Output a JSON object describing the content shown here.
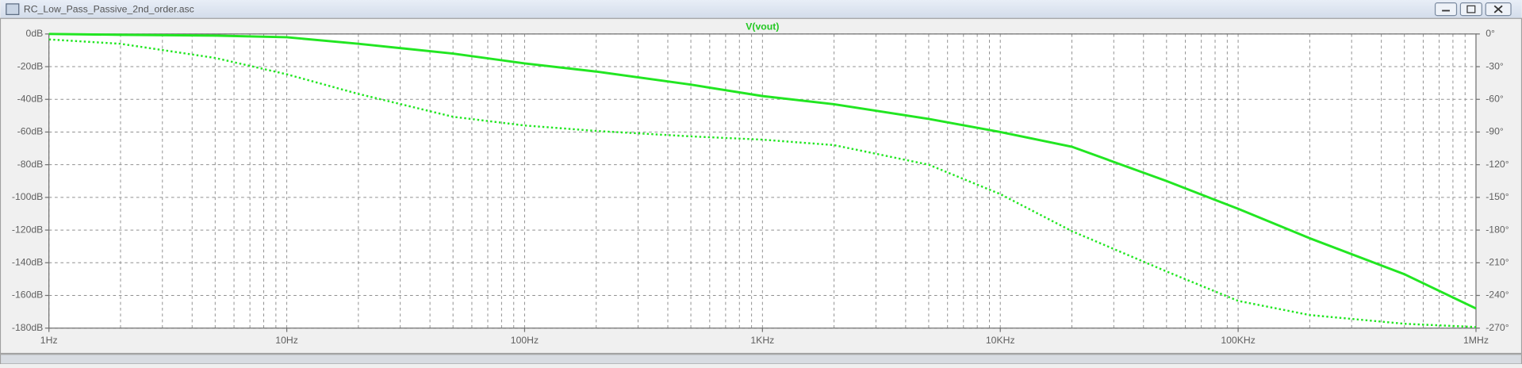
{
  "window_title": "RC_Low_Pass_Passive_2nd_order.asc",
  "chart_data": {
    "type": "line",
    "title": "V(vout)",
    "xlog": true,
    "grid": true,
    "x": [
      1,
      2,
      5,
      10,
      20,
      50,
      100,
      200,
      500,
      1000,
      2000,
      5000,
      10000,
      20000,
      50000,
      100000,
      200000,
      500000,
      1000000
    ],
    "series": [
      {
        "name": "V(vout)",
        "color": "#22e622",
        "style": "solid",
        "values": [
          0,
          -0.5,
          -1,
          -2,
          -6,
          -12,
          -18,
          -23,
          -31,
          -38,
          -43,
          -52,
          -60,
          -69,
          -90,
          -107,
          -125,
          -147,
          -168
        ]
      },
      {
        "name": "V(vout)",
        "color": "#22e622",
        "style": "dotted",
        "axis": "y2",
        "values": [
          -5,
          -9,
          -22,
          -37,
          -55,
          -76,
          -84,
          -89,
          -94,
          -97,
          -102,
          -120,
          -147,
          -181,
          -218,
          -245,
          -258,
          -266,
          -269
        ]
      }
    ],
    "xlim": [
      1,
      1000000
    ],
    "xticks": [
      {
        "value": 1,
        "label": "1Hz"
      },
      {
        "value": 10,
        "label": "10Hz"
      },
      {
        "value": 100,
        "label": "100Hz"
      },
      {
        "value": 1000,
        "label": "1KHz"
      },
      {
        "value": 10000,
        "label": "10KHz"
      },
      {
        "value": 100000,
        "label": "100KHz"
      },
      {
        "value": 1000000,
        "label": "1MHz"
      }
    ],
    "xminorticks": [
      2,
      3,
      4,
      5,
      6,
      7,
      8,
      9,
      20,
      30,
      40,
      50,
      60,
      70,
      80,
      90,
      200,
      300,
      400,
      500,
      600,
      700,
      800,
      900,
      2000,
      3000,
      4000,
      5000,
      6000,
      7000,
      8000,
      9000,
      20000,
      30000,
      40000,
      50000,
      60000,
      70000,
      80000,
      90000,
      200000,
      300000,
      400000,
      500000,
      600000,
      700000,
      800000,
      900000
    ],
    "ylim": [
      -180,
      0
    ],
    "yticks": [
      {
        "value": 0,
        "label": "0dB"
      },
      {
        "value": -20,
        "label": "-20dB"
      },
      {
        "value": -40,
        "label": "-40dB"
      },
      {
        "value": -60,
        "label": "-60dB"
      },
      {
        "value": -80,
        "label": "-80dB"
      },
      {
        "value": -100,
        "label": "-100dB"
      },
      {
        "value": -120,
        "label": "-120dB"
      },
      {
        "value": -140,
        "label": "-140dB"
      },
      {
        "value": -160,
        "label": "-160dB"
      },
      {
        "value": -180,
        "label": "-180dB"
      }
    ],
    "y2lim": [
      -270,
      0
    ],
    "y2ticks": [
      {
        "value": 0,
        "label": "0°"
      },
      {
        "value": -30,
        "label": "-30°"
      },
      {
        "value": -60,
        "label": "-60°"
      },
      {
        "value": -90,
        "label": "-90°"
      },
      {
        "value": -120,
        "label": "-120°"
      },
      {
        "value": -150,
        "label": "-150°"
      },
      {
        "value": -180,
        "label": "-180°"
      },
      {
        "value": -210,
        "label": "-210°"
      },
      {
        "value": -240,
        "label": "-240°"
      },
      {
        "value": -270,
        "label": "-270°"
      }
    ]
  }
}
